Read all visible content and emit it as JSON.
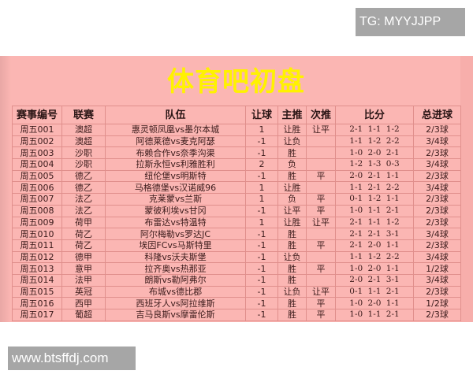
{
  "watermark_top": "TG: MYYJJPP",
  "watermark_bottom": "www.btsffdj.com",
  "title": "体育吧初盘",
  "headers": [
    "赛事编号",
    "联赛",
    "队伍",
    "让球",
    "主推",
    "次推",
    "比分",
    "总进球"
  ],
  "rows": [
    [
      "周五001",
      "澳超",
      "惠灵顿凤凰vs墨尔本城",
      "1",
      "让胜",
      "让平",
      "2-1 1-1 1-2",
      "2/3球"
    ],
    [
      "周五002",
      "澳超",
      "阿德莱德vs麦克阿瑟",
      "-1",
      "让负",
      "",
      "1-1 1-2 2-2",
      "3/4球"
    ],
    [
      "周五003",
      "沙职",
      "布赖合作vs奈季沟渠",
      "-1",
      "胜",
      "",
      "1-0 2-0 2-1",
      "2/3球"
    ],
    [
      "周五004",
      "沙职",
      "拉斯永恒vs利雅胜利",
      "2",
      "负",
      "",
      "1-2 1-3 0-3",
      "3/4球"
    ],
    [
      "周五005",
      "德乙",
      "纽伦堡vs明斯特",
      "-1",
      "胜",
      "平",
      "2-0 2-1 1-1",
      "2/3球"
    ],
    [
      "周五006",
      "德乙",
      "马格德堡vs汉诺威96",
      "1",
      "让胜",
      "",
      "1-1 2-1 2-2",
      "3/4球"
    ],
    [
      "周五007",
      "法乙",
      "克莱蒙vs兰斯",
      "1",
      "负",
      "平",
      "0-1 1-2 1-1",
      "2/3球"
    ],
    [
      "周五008",
      "法乙",
      "蒙彼利埃vs甘冈",
      "-1",
      "让平",
      "平",
      "1-0 1-1 2-1",
      "2/3球"
    ],
    [
      "周五009",
      "荷甲",
      "布雷达vs特温特",
      "1",
      "让胜",
      "让平",
      "2-1 1-1 1-2",
      "2/3球"
    ],
    [
      "周五010",
      "荷乙",
      "阿尔梅勒vs罗达JC",
      "-1",
      "胜",
      "",
      "2-1 2-1 3-1",
      "3/4球"
    ],
    [
      "周五011",
      "荷乙",
      "埃因FCvs马斯特里",
      "-1",
      "胜",
      "平",
      "2-1 2-0 1-1",
      "2/3球"
    ],
    [
      "周五012",
      "德甲",
      "科隆vs沃夫斯堡",
      "-1",
      "让负",
      "",
      "1-1 1-2 2-2",
      "3/4球"
    ],
    [
      "周五013",
      "意甲",
      "拉齐奥vs热那亚",
      "-1",
      "胜",
      "平",
      "1-0 2-0 1-1",
      "1/2球"
    ],
    [
      "周五014",
      "法甲",
      "朗斯vs勒阿弗尔",
      "-1",
      "胜",
      "",
      "2-0 2-1 3-1",
      "3/4球"
    ],
    [
      "周五015",
      "英冠",
      "布城vs德比郡",
      "-1",
      "让负",
      "让平",
      "0-1 1-1 2-1",
      "2/3球"
    ],
    [
      "周五016",
      "西甲",
      "西班牙人vs阿拉维斯",
      "-1",
      "胜",
      "平",
      "1-0 2-0 1-1",
      "1/2球"
    ],
    [
      "周五017",
      "葡超",
      "吉马良斯vs摩雷伦斯",
      "-1",
      "胜",
      "平",
      "1-0 1-1 2-1",
      "2/3球"
    ]
  ]
}
